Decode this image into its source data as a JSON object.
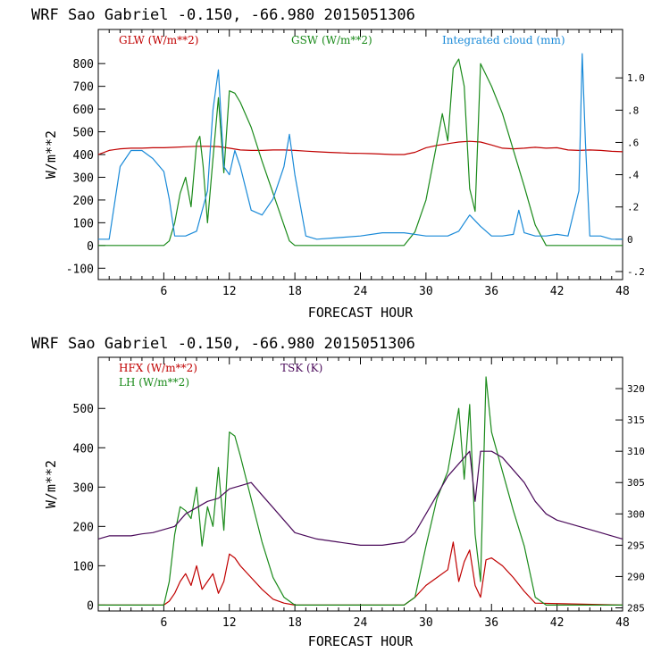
{
  "colors": {
    "red": "#c00000",
    "green": "#1a8a1a",
    "blue": "#1a8ad8",
    "purple": "#4a0a5a"
  },
  "chart_data": [
    {
      "type": "line",
      "title": "WRF   Sao Gabriel   -0.150, -66.980  2015051306",
      "xlabel": "FORECAST HOUR",
      "ylabel": "W/m**2",
      "xlim": [
        0,
        48
      ],
      "ylim": [
        -150,
        950
      ],
      "xticks": [
        "6",
        "12",
        "18",
        "24",
        "30",
        "36",
        "42",
        "48"
      ],
      "yticks": [
        "-100",
        "0",
        "100",
        "200",
        "300",
        "400",
        "500",
        "600",
        "700",
        "800"
      ],
      "right_axis": {
        "label": "Integrated cloud (mm)",
        "ylim": [
          -0.25,
          1.3
        ],
        "ticks": [
          "-.2",
          "0",
          ".2",
          ".4",
          ".6",
          ".8",
          "1.0"
        ]
      },
      "series": [
        {
          "name": "GLW (W/m**2)",
          "color": "#c00000",
          "axis": "left",
          "x": [
            0,
            1,
            2,
            3,
            4,
            5,
            6,
            7,
            8,
            9,
            10,
            11,
            12,
            13,
            14,
            15,
            16,
            17,
            18,
            19,
            20,
            21,
            22,
            23,
            24,
            25,
            26,
            27,
            28,
            29,
            30,
            31,
            32,
            33,
            34,
            35,
            36,
            37,
            38,
            39,
            40,
            41,
            42,
            43,
            44,
            45,
            46,
            47,
            48
          ],
          "y": [
            400,
            418,
            425,
            428,
            428,
            430,
            430,
            432,
            434,
            436,
            436,
            435,
            428,
            420,
            418,
            418,
            420,
            420,
            418,
            415,
            412,
            410,
            408,
            406,
            405,
            404,
            402,
            400,
            400,
            410,
            430,
            440,
            448,
            455,
            458,
            455,
            442,
            428,
            425,
            428,
            432,
            428,
            430,
            420,
            418,
            420,
            418,
            414,
            412
          ]
        },
        {
          "name": "GSW (W/m**2)",
          "color": "#1a8a1a",
          "axis": "left",
          "x": [
            0,
            6,
            6.5,
            7,
            7.5,
            8,
            8.5,
            9,
            9.3,
            9.6,
            10,
            10.5,
            11,
            11.5,
            12,
            12.5,
            13,
            14,
            15,
            16,
            17,
            17.5,
            18,
            28,
            29,
            30,
            31,
            31.5,
            32,
            32.5,
            33,
            33.5,
            34,
            34.5,
            35,
            36,
            37,
            38,
            39,
            40,
            41,
            48
          ],
          "y": [
            0,
            0,
            20,
            100,
            230,
            300,
            170,
            450,
            480,
            350,
            100,
            380,
            650,
            320,
            680,
            670,
            630,
            520,
            370,
            230,
            90,
            20,
            0,
            0,
            60,
            200,
            450,
            580,
            460,
            780,
            820,
            700,
            250,
            150,
            800,
            700,
            580,
            420,
            260,
            90,
            0,
            0
          ]
        },
        {
          "name": "Integrated cloud (mm)",
          "color": "#1a8ad8",
          "axis": "right",
          "x": [
            0,
            1,
            2,
            3,
            4,
            5,
            6,
            6.5,
            7,
            8,
            9,
            10,
            10.5,
            11,
            11.5,
            12,
            12.5,
            13,
            14,
            15,
            16,
            17,
            17.5,
            18,
            19,
            20,
            22,
            24,
            26,
            28,
            30,
            32,
            33,
            34,
            35,
            36,
            37,
            38,
            38.5,
            39,
            40,
            41,
            42,
            43,
            44,
            44.3,
            44.6,
            45,
            46,
            47,
            48
          ],
          "y": [
            0,
            0,
            0.45,
            0.55,
            0.55,
            0.5,
            0.42,
            0.25,
            0.02,
            0.02,
            0.05,
            0.3,
            0.8,
            1.05,
            0.45,
            0.4,
            0.55,
            0.45,
            0.18,
            0.15,
            0.25,
            0.45,
            0.65,
            0.4,
            0.02,
            0.0,
            0.01,
            0.02,
            0.04,
            0.04,
            0.02,
            0.02,
            0.05,
            0.15,
            0.08,
            0.02,
            0.02,
            0.03,
            0.18,
            0.04,
            0.02,
            0.02,
            0.03,
            0.02,
            0.3,
            1.15,
            0.6,
            0.02,
            0.02,
            0.0,
            0.0
          ]
        }
      ]
    },
    {
      "type": "line",
      "title": "WRF   Sao Gabriel   -0.150, -66.980  2015051306",
      "xlabel": "FORECAST HOUR",
      "ylabel": "W/m**2",
      "xlim": [
        0,
        48
      ],
      "ylim": [
        -15,
        630
      ],
      "xticks": [
        "6",
        "12",
        "18",
        "24",
        "30",
        "36",
        "42",
        "48"
      ],
      "yticks": [
        "0",
        "100",
        "200",
        "300",
        "400",
        "500"
      ],
      "right_axis": {
        "label": "TSK (K)",
        "ylim": [
          284.5,
          325
        ],
        "ticks": [
          "285",
          "290",
          "295",
          "300",
          "305",
          "310",
          "315",
          "320"
        ]
      },
      "series": [
        {
          "name": "HFX (W/m**2)",
          "color": "#c00000",
          "axis": "left",
          "x": [
            0,
            6,
            6.5,
            7,
            7.5,
            8,
            8.5,
            9,
            9.5,
            10,
            10.5,
            11,
            11.5,
            12,
            12.5,
            13,
            14,
            15,
            16,
            17,
            18,
            28,
            29,
            30,
            31,
            32,
            32.5,
            33,
            33.5,
            34,
            34.5,
            35,
            35.5,
            36,
            37,
            38,
            39,
            40,
            48
          ],
          "y": [
            0,
            0,
            10,
            30,
            60,
            80,
            50,
            100,
            40,
            60,
            80,
            30,
            60,
            130,
            120,
            100,
            70,
            40,
            15,
            5,
            0,
            0,
            20,
            50,
            70,
            90,
            160,
            60,
            110,
            140,
            50,
            20,
            115,
            120,
            100,
            70,
            35,
            5,
            0
          ]
        },
        {
          "name": "LH  (W/m**2)",
          "color": "#1a8a1a",
          "axis": "left",
          "x": [
            0,
            6,
            6.5,
            7,
            7.5,
            8,
            8.5,
            9,
            9.5,
            10,
            10.5,
            11,
            11.5,
            12,
            12.5,
            13,
            14,
            15,
            16,
            17,
            18,
            28,
            29,
            30,
            31,
            32,
            32.5,
            33,
            33.5,
            34,
            34.5,
            35,
            35.5,
            36,
            37,
            38,
            39,
            40,
            41,
            48
          ],
          "y": [
            0,
            0,
            60,
            180,
            250,
            240,
            220,
            300,
            150,
            250,
            200,
            350,
            190,
            440,
            430,
            380,
            270,
            160,
            70,
            20,
            0,
            0,
            20,
            150,
            270,
            340,
            420,
            500,
            320,
            510,
            180,
            60,
            580,
            440,
            340,
            240,
            150,
            20,
            0,
            0
          ]
        },
        {
          "name": "TSK (K)",
          "color": "#4a0a5a",
          "axis": "right",
          "x": [
            0,
            1,
            2,
            3,
            4,
            5,
            6,
            7,
            8,
            9,
            10,
            11,
            12,
            13,
            14,
            15,
            16,
            17,
            18,
            19,
            20,
            22,
            24,
            26,
            28,
            29,
            30,
            31,
            32,
            33,
            34,
            34.5,
            35,
            36,
            37,
            38,
            39,
            40,
            41,
            42,
            43,
            44,
            45,
            46,
            47,
            48
          ],
          "y": [
            296,
            296.5,
            296.5,
            296.5,
            296.8,
            297,
            297.5,
            298,
            300,
            301,
            302,
            302.5,
            304,
            304.5,
            305,
            303,
            301,
            299,
            297,
            296.5,
            296,
            295.5,
            295,
            295,
            295.5,
            297,
            300,
            303,
            306,
            308,
            310,
            302,
            310,
            310,
            309,
            307,
            305,
            302,
            300,
            299,
            298.5,
            298,
            297.5,
            297,
            296.5,
            296
          ]
        }
      ]
    }
  ]
}
